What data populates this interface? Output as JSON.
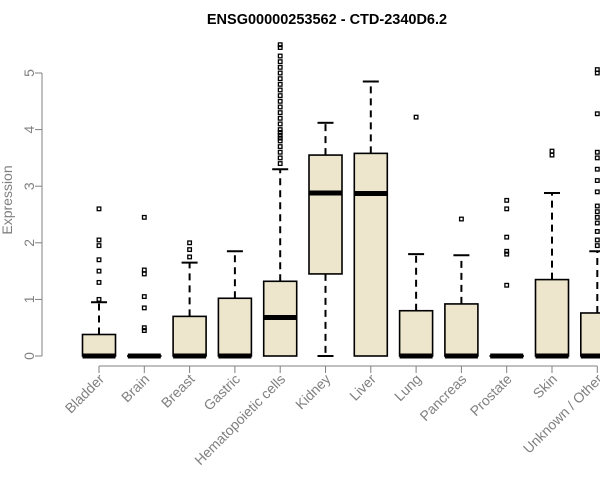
{
  "chart_data": {
    "type": "boxplot",
    "title": "ENSG00000253562 - CTD-2340D6.2",
    "xlabel": "",
    "ylabel": "Expression",
    "ylim": [
      0,
      5.5
    ],
    "yticks": [
      0,
      1,
      2,
      3,
      4,
      5
    ],
    "categories": [
      "Bladder",
      "Brain",
      "Breast",
      "Gastric",
      "Hematopoietic cells",
      "Kidney",
      "Liver",
      "Lung",
      "Pancreas",
      "Prostate",
      "Skin",
      "Unknown / Other"
    ],
    "boxes": [
      {
        "min": 0,
        "q1": 0,
        "median": 0,
        "q3": 0.38,
        "max": 0.95,
        "outliers": [
          1.0,
          1.3,
          1.5,
          1.7,
          1.95,
          2.05,
          2.6
        ]
      },
      {
        "min": 0,
        "q1": 0,
        "median": 0,
        "q3": 0,
        "max": 0,
        "outliers": [
          0.45,
          0.5,
          0.85,
          1.05,
          1.45,
          1.52,
          2.45
        ]
      },
      {
        "min": 0,
        "q1": 0,
        "median": 0,
        "q3": 0.7,
        "max": 1.65,
        "outliers": [
          1.75,
          1.88,
          2.0
        ]
      },
      {
        "min": 0,
        "q1": 0,
        "median": 0,
        "q3": 1.02,
        "max": 1.85,
        "outliers": []
      },
      {
        "min": 0,
        "q1": 0,
        "median": 0.68,
        "q3": 1.32,
        "max": 3.3,
        "outliers": [
          3.4,
          3.5,
          3.6,
          3.7,
          3.8,
          3.85,
          3.9,
          3.95,
          4.0,
          4.1,
          4.2,
          4.3,
          4.4,
          4.5,
          4.6,
          4.7,
          4.8,
          4.9,
          5.0,
          5.1,
          5.2,
          5.3,
          5.45,
          5.5
        ]
      },
      {
        "min": 0,
        "q1": 1.45,
        "median": 2.88,
        "q3": 3.55,
        "max": 4.12,
        "outliers": []
      },
      {
        "min": 0,
        "q1": 0,
        "median": 2.87,
        "q3": 3.58,
        "max": 4.85,
        "outliers": []
      },
      {
        "min": 0,
        "q1": 0,
        "median": 0,
        "q3": 0.8,
        "max": 1.8,
        "outliers": [
          4.22
        ]
      },
      {
        "min": 0,
        "q1": 0,
        "median": 0,
        "q3": 0.92,
        "max": 1.78,
        "outliers": [
          2.42
        ]
      },
      {
        "min": 0,
        "q1": 0,
        "median": 0,
        "q3": 0,
        "max": 0,
        "outliers": [
          1.25,
          1.8,
          1.85,
          2.1,
          2.6,
          2.75
        ]
      },
      {
        "min": 0,
        "q1": 0,
        "median": 0,
        "q3": 1.35,
        "max": 2.88,
        "outliers": [
          3.55,
          3.62
        ]
      },
      {
        "min": 0,
        "q1": 0,
        "median": 0,
        "q3": 0.76,
        "max": 1.85,
        "outliers": [
          1.95,
          2.05,
          2.2,
          2.35,
          2.45,
          2.55,
          2.65,
          2.9,
          3.1,
          3.3,
          3.5,
          3.6,
          4.28,
          5.0,
          5.06
        ]
      }
    ],
    "colors": {
      "box_fill": "#ede5cc",
      "box_stroke": "#000000",
      "axis": "#808080",
      "text": "#808080",
      "title": "#000000"
    }
  }
}
